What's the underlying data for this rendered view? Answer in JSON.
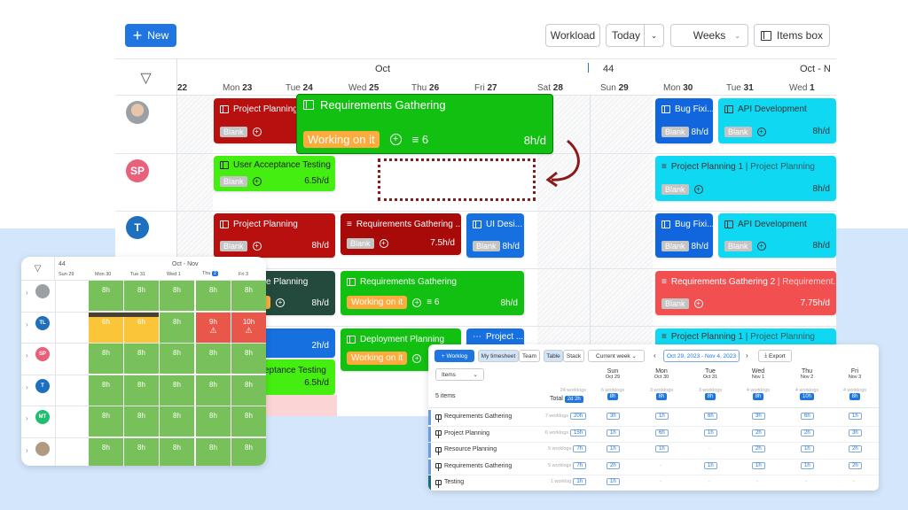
{
  "toolbar": {
    "new_label": "New",
    "workload_label": "Workload",
    "today_label": "Today",
    "weeks_label": "Weeks",
    "items_box_label": "Items box"
  },
  "gantt": {
    "month_label": "Oct",
    "week_number": "44",
    "month_range": "Oct - N",
    "days": [
      {
        "name": "",
        "num": "22"
      },
      {
        "name": "Mon",
        "num": "23"
      },
      {
        "name": "Tue",
        "num": "24"
      },
      {
        "name": "Wed",
        "num": "25"
      },
      {
        "name": "Thu",
        "num": "26"
      },
      {
        "name": "Fri",
        "num": "27"
      },
      {
        "name": "Sat",
        "num": "28"
      },
      {
        "name": "Sun",
        "num": "29"
      },
      {
        "name": "Mon",
        "num": "30"
      },
      {
        "name": "Tue",
        "num": "31"
      },
      {
        "name": "Wed",
        "num": "1"
      }
    ],
    "people": [
      {
        "initials": "",
        "color": "#9aa0a6"
      },
      {
        "initials": "SP",
        "color": "#e8607a"
      },
      {
        "initials": "T",
        "color": "#1f6fbf"
      }
    ],
    "cards": [
      {
        "title": "Project Planning",
        "tag": "Blank",
        "color": "#b80f0f"
      },
      {
        "title": "Requirements Gathering",
        "status": "Working on it",
        "subitems": "6",
        "rate": "8h/d",
        "color": "#11c011"
      },
      {
        "title": "Bug Fixi...",
        "tag": "Blank",
        "rate": "8h/d",
        "color": "#1166dd"
      },
      {
        "title": "API Development",
        "tag": "Blank",
        "rate": "8h/d",
        "color": "#0fd8f2"
      },
      {
        "title": "User Acceptance Testing",
        "tag": "Blank",
        "rate": "6.5h/d",
        "color": "#44ee11"
      },
      {
        "title": "Project Planning 1",
        "parent": "| Project Planning",
        "tag": "Blank",
        "rate": "8h/d",
        "color": "#0fd8f2"
      },
      {
        "title": "Project Planning",
        "tag": "Blank",
        "rate": "8h/d",
        "color": "#b80f0f"
      },
      {
        "title": "Requirements Gathering ...",
        "tag": "Blank",
        "rate": "7.5h/d",
        "color": "#a80a0a"
      },
      {
        "title": "UI Desi...",
        "tag": "Blank",
        "rate": "8h/d",
        "color": "#1770e0"
      },
      {
        "title": "Bug Fixi...",
        "tag": "Blank",
        "rate": "8h/d",
        "color": "#1166dd"
      },
      {
        "title": "API Development",
        "tag": "Blank",
        "rate": "8h/d",
        "color": "#0fd8f2"
      },
      {
        "title": "e Planning",
        "status": "it",
        "rate": "8h/d",
        "color": "#234a3d"
      },
      {
        "title": "Requirements Gathering",
        "status": "Working on it",
        "subitems": "6",
        "rate": "8h/d",
        "color": "#11c011"
      },
      {
        "title": "Requirements Gathering 2",
        "parent": "| Requirement...",
        "tag": "Blank",
        "rate": "7.75h/d",
        "color": "#f25050"
      },
      {
        "rate": "2h/d",
        "color": "#1770e0"
      },
      {
        "title": "Deployment Planning",
        "status": "Working on it",
        "color": "#11c011"
      },
      {
        "title": "Project ...",
        "color": "#1770e0"
      },
      {
        "title": "Project Planning 1",
        "parent": "| Project Planning",
        "color": "#0fd8f2"
      },
      {
        "title": "eptance Testing",
        "rate": "6.5h/d",
        "color": "#44ee11"
      }
    ]
  },
  "workload": {
    "week_number": "44",
    "month_range": "Oct - Nov",
    "days": [
      {
        "name": "Sun",
        "num": "29"
      },
      {
        "name": "Mon",
        "num": "30"
      },
      {
        "name": "Tue",
        "num": "31"
      },
      {
        "name": "Wed",
        "num": "1"
      },
      {
        "name": "Thu",
        "num": "2",
        "today": true
      },
      {
        "name": "Fri",
        "num": "3"
      }
    ],
    "rows": [
      {
        "initials": "",
        "color": "#9aa0a6",
        "cells": [
          "8h",
          "8h",
          "8h",
          "8h",
          "8h"
        ],
        "colors": [
          "#78c05a",
          "#78c05a",
          "#78c05a",
          "#78c05a",
          "#78c05a"
        ]
      },
      {
        "initials": "TL",
        "color": "#1f6fbf",
        "cells": [
          "6h",
          "6h",
          "8h",
          "9h",
          "10h"
        ],
        "colors": [
          "#fbc53a",
          "#fbc53a",
          "#78c05a",
          "#e9574a",
          "#e9574a"
        ],
        "warn": [
          false,
          false,
          false,
          true,
          true
        ]
      },
      {
        "initials": "SP",
        "color": "#e8607a",
        "cells": [
          "8h",
          "8h",
          "8h",
          "8h",
          "8h"
        ],
        "colors": [
          "#78c05a",
          "#78c05a",
          "#78c05a",
          "#78c05a",
          "#78c05a"
        ]
      },
      {
        "initials": "T",
        "color": "#1f6fbf",
        "cells": [
          "8h",
          "8h",
          "8h",
          "8h",
          "8h"
        ],
        "colors": [
          "#78c05a",
          "#78c05a",
          "#78c05a",
          "#78c05a",
          "#78c05a"
        ]
      },
      {
        "initials": "MT",
        "color": "#1fbf6f",
        "cells": [
          "8h",
          "8h",
          "8h",
          "8h",
          "8h"
        ],
        "colors": [
          "#78c05a",
          "#78c05a",
          "#78c05a",
          "#78c05a",
          "#78c05a"
        ]
      },
      {
        "initials": "",
        "color": "#b09a80",
        "cells": [
          "8h",
          "8h",
          "8h",
          "8h",
          "8h"
        ],
        "colors": [
          "#78c05a",
          "#78c05a",
          "#78c05a",
          "#78c05a",
          "#78c05a"
        ]
      }
    ]
  },
  "timesheet": {
    "worklog_label": "Worklog",
    "my_timesheet_label": "My timesheet",
    "team_label": "Team",
    "table_label": "Table",
    "stack_label": "Stack",
    "period_label": "Current week",
    "date_range": "Oct 29, 2023 - Nov 4, 2023",
    "export_label": "Export",
    "items_dropdown": "Items",
    "items_count": "5 items",
    "total_label": "Total",
    "total_worklogs": "24 worklogs",
    "total_value": "2d 2h",
    "columns": [
      {
        "day": "Sun",
        "date": "Oct 29",
        "worklogs": "6 worklogs",
        "total": "8h"
      },
      {
        "day": "Mon",
        "date": "Oct 30",
        "worklogs": "3 worklogs",
        "total": "8h"
      },
      {
        "day": "Tue",
        "date": "Oct 31",
        "worklogs": "3 worklogs",
        "total": "8h"
      },
      {
        "day": "Wed",
        "date": "Nov 1",
        "worklogs": "4 worklogs",
        "total": "8h"
      },
      {
        "day": "Thu",
        "date": "Nov 2",
        "worklogs": "4 worklogs",
        "total": "10h"
      },
      {
        "day": "Fri",
        "date": "Nov 3",
        "worklogs": "4 worklogs",
        "total": "8h"
      }
    ],
    "rows": [
      {
        "name": "Requirements Gathering",
        "worklogs": "7 worklogs",
        "total": "20h",
        "values": [
          "3h",
          "1h",
          "6h",
          "3h",
          "6h",
          "1h"
        ]
      },
      {
        "name": "Project Planning",
        "worklogs": "6 worklogs",
        "total": "15h",
        "values": [
          "1h",
          "6h",
          "1h",
          "2h",
          "2h",
          "3h"
        ]
      },
      {
        "name": "Resource Planning",
        "worklogs": "5 worklogs",
        "total": "7h",
        "values": [
          "1h",
          "1h",
          "-",
          "2h",
          "1h",
          "2h"
        ]
      },
      {
        "name": "Requirements Gathering",
        "worklogs": "5 worklogs",
        "total": "7h",
        "values": [
          "2h",
          "-",
          "1h",
          "1h",
          "1h",
          "2h"
        ]
      },
      {
        "name": "Testing",
        "worklogs": "1 worklog",
        "total": "1h",
        "values": [
          "1h",
          "-",
          "-",
          "-",
          "-",
          "-"
        ]
      }
    ]
  }
}
